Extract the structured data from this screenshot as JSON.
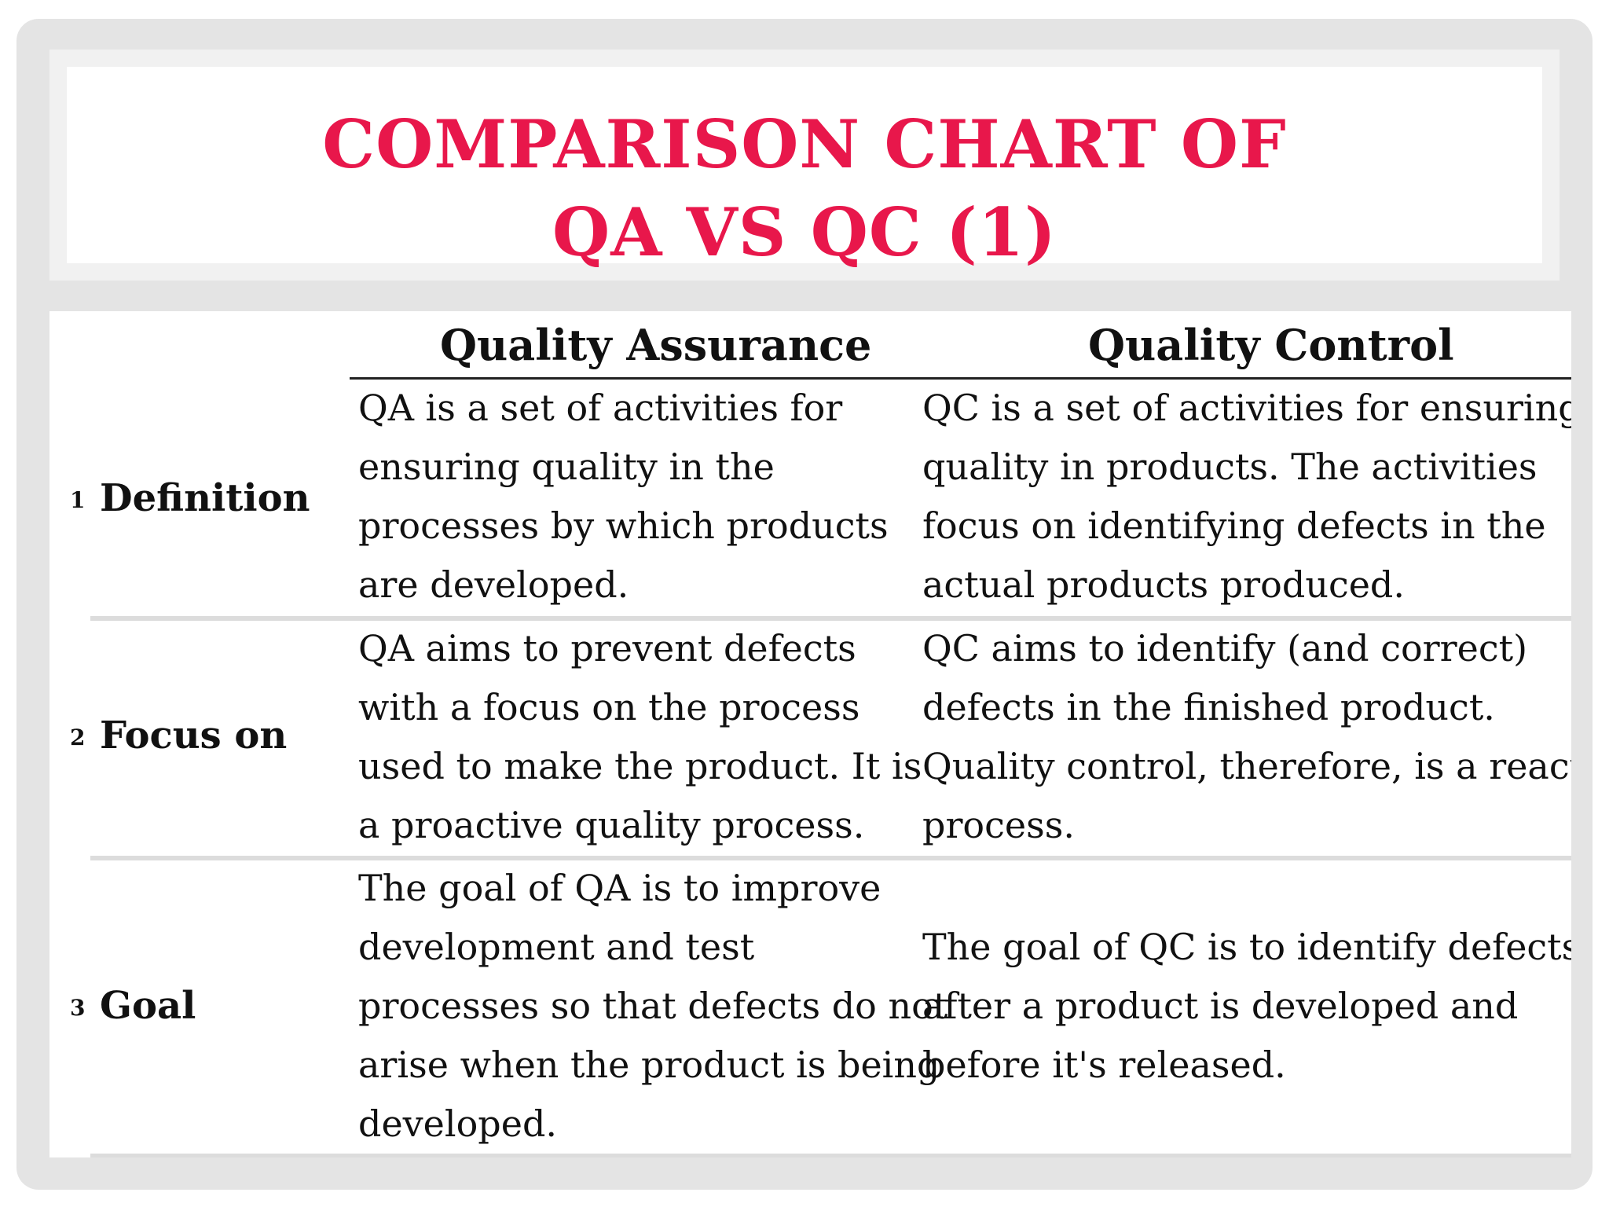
{
  "slide": {
    "title_line1": "COMPARISON CHART OF",
    "title_line2": "QA VS QC  (1)",
    "title_color": "#e8174b"
  },
  "table": {
    "headers": {
      "qa": "Quality Assurance",
      "qc": "Quality Control"
    },
    "rows": [
      {
        "number": "1",
        "label": "Definition",
        "qa": "QA is a set of activities for\nensuring quality in the\nprocesses by which products\nare developed.",
        "qc": "QC is a set of activities for ensuring\nquality in products. The activities\nfocus on identifying defects in the\nactual products produced."
      },
      {
        "number": "2",
        "label": "Focus on",
        "qa": "QA aims to prevent defects\nwith a focus on the process\nused to make the product. It is\na proactive quality process.",
        "qc": "QC aims to identify (and correct)\ndefects in the finished product.\nQuality control, therefore, is a reactive\nprocess."
      },
      {
        "number": "3",
        "label": "Goal",
        "qa": "The goal of QA is to improve\ndevelopment and test\nprocesses so that defects do not\narise when the product is being\ndeveloped.",
        "qc": "The goal of QC is to identify defects\nafter a product is developed and\nbefore it's released."
      }
    ]
  }
}
